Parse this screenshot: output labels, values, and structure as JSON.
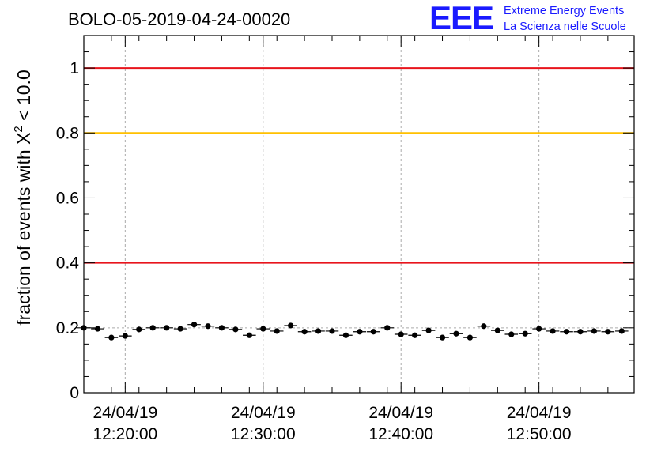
{
  "header": {
    "run_title": "BOLO-05-2019-04-24-00020",
    "logo_text": "EEE",
    "logo_line1": "Extreme Energy Events",
    "logo_line2": "La Scienza nelle Scuole"
  },
  "chart_data": {
    "type": "scatter",
    "title": "BOLO-05-2019-04-24-00020",
    "ylabel_main": "fraction of events with X",
    "ylabel_sup": "2",
    "ylabel_tail": " < 10.0",
    "xlabel": "",
    "ylim": [
      0,
      1.1
    ],
    "xlim_minutes": [
      12.0,
      51.9
    ],
    "grid": true,
    "y_ticks": [
      {
        "value": 0,
        "label": "0"
      },
      {
        "value": 0.2,
        "label": "0.2"
      },
      {
        "value": 0.4,
        "label": "0.4"
      },
      {
        "value": 0.6,
        "label": "0.6"
      },
      {
        "value": 0.8,
        "label": "0.8"
      },
      {
        "value": 1,
        "label": "1"
      }
    ],
    "x_ticks": [
      {
        "minute": 15,
        "date": "24/04/19",
        "time": "12:20:00"
      },
      {
        "minute": 25,
        "date": "24/04/19",
        "time": "12:30:00"
      },
      {
        "minute": 35,
        "date": "24/04/19",
        "time": "12:40:00"
      },
      {
        "minute": 45,
        "date": "24/04/19",
        "time": "12:50:00"
      }
    ],
    "reference_lines": [
      {
        "value": 1.0,
        "color": "#e8141c"
      },
      {
        "value": 0.8,
        "color": "#ffc000"
      },
      {
        "value": 0.4,
        "color": "#e8141c"
      }
    ],
    "series": [
      {
        "marker_color": "#000000",
        "x": [
          12.0,
          13.0,
          14.0,
          15.0,
          16.0,
          17.0,
          18.0,
          19.0,
          20.0,
          21.0,
          22.0,
          23.0,
          24.0,
          25.0,
          26.0,
          27.0,
          28.0,
          29.0,
          30.0,
          31.0,
          32.0,
          33.0,
          34.0,
          35.0,
          36.0,
          37.0,
          38.0,
          39.0,
          40.0,
          41.0,
          42.0,
          43.0,
          44.0,
          45.0,
          46.0,
          47.0,
          48.0,
          49.0,
          50.0,
          51.0
        ],
        "values": [
          0.2,
          0.197,
          0.17,
          0.175,
          0.195,
          0.2,
          0.2,
          0.197,
          0.21,
          0.205,
          0.2,
          0.195,
          0.177,
          0.197,
          0.19,
          0.207,
          0.188,
          0.19,
          0.19,
          0.177,
          0.188,
          0.188,
          0.2,
          0.18,
          0.177,
          0.192,
          0.17,
          0.182,
          0.17,
          0.205,
          0.192,
          0.18,
          0.182,
          0.197,
          0.19,
          0.188,
          0.188,
          0.19,
          0.188,
          0.19
        ],
        "error": 0.007
      }
    ]
  }
}
